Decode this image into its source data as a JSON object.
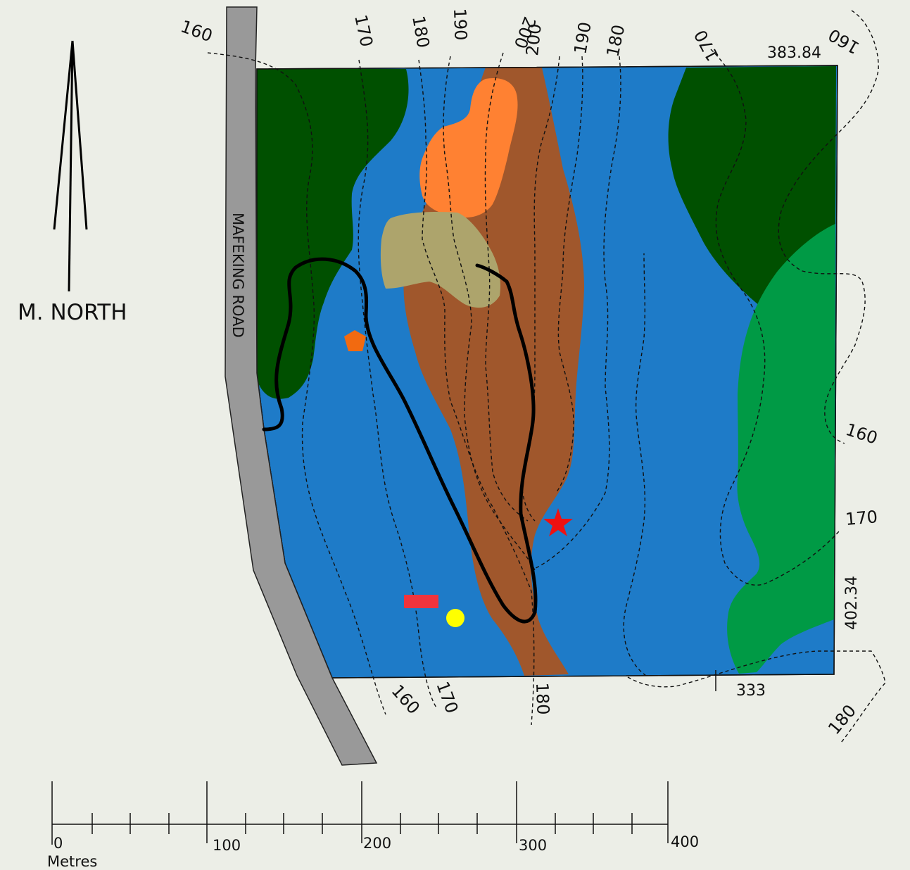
{
  "north_arrow": {
    "label": "M. NORTH"
  },
  "road": {
    "label": "MAFEKING ROAD"
  },
  "boundary": {
    "north_length": "383.84",
    "east_length": "402.34",
    "south_length": "333"
  },
  "contours": {
    "top": [
      "160",
      "170",
      "180",
      "190",
      "200",
      "200",
      "190",
      "180",
      "170",
      "160"
    ],
    "right": [
      "160",
      "170",
      "180"
    ],
    "bottom": [
      "160",
      "170",
      "180"
    ]
  },
  "scale_bar": {
    "ticks": [
      "0",
      "100",
      "200",
      "300",
      "400"
    ],
    "unit": "Metres"
  },
  "colors": {
    "background": "#eceee7",
    "water_blue": "#1e7bc8",
    "dark_forest": "#005000",
    "light_forest": "#009a45",
    "ridge_brown": "#a0572c",
    "orange_area": "#ff8132",
    "khaki_area": "#ada46c",
    "road_gray": "#999999",
    "star_red": "#ee1111",
    "rectangle_red": "#f0343d",
    "pentagon_orange": "#f26a10",
    "circle_yellow": "#ffff00"
  },
  "symbols": [
    "red-star",
    "red-rectangle",
    "yellow-circle",
    "orange-pentagon"
  ]
}
